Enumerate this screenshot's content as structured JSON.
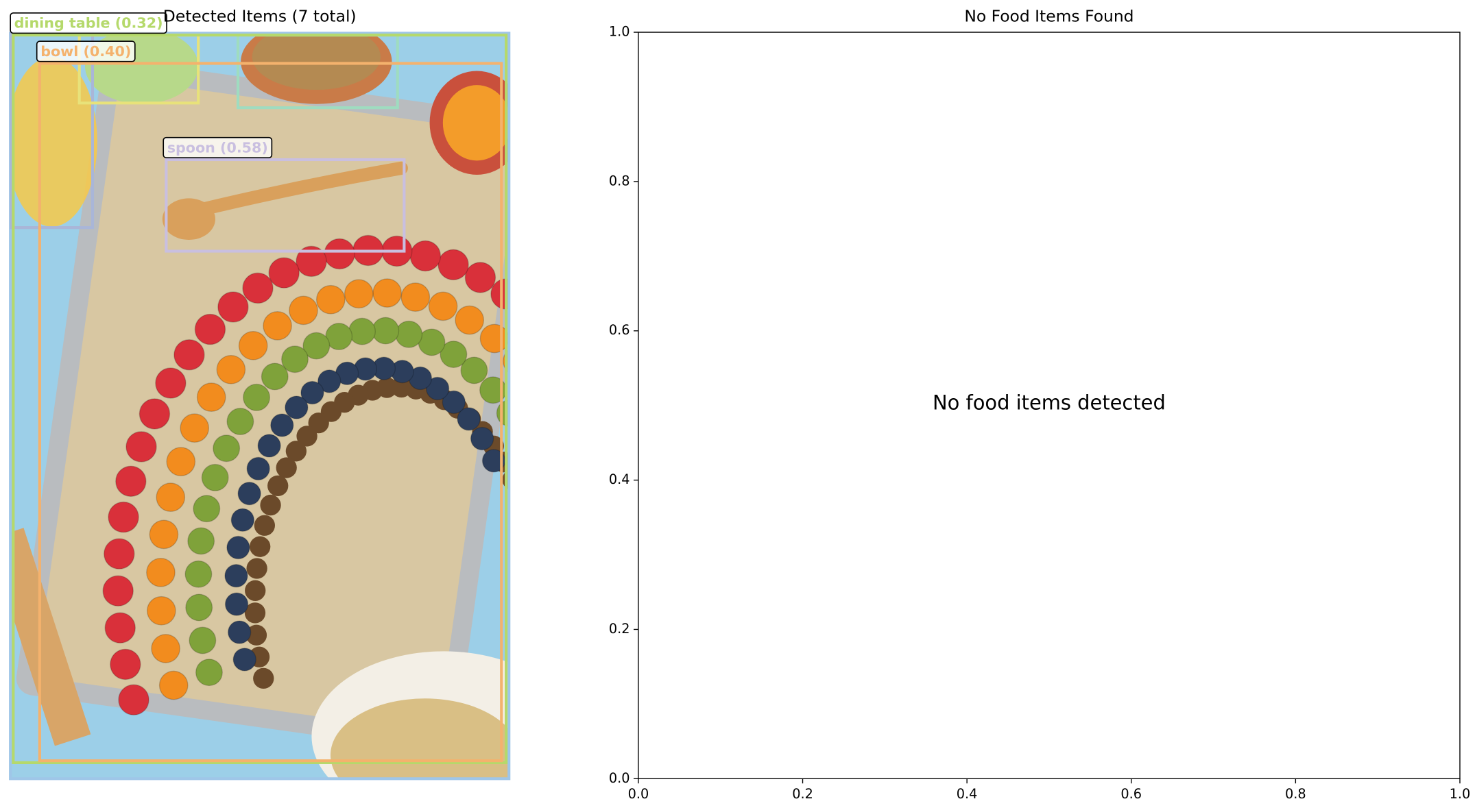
{
  "chart_data": [
    {
      "type": "image",
      "title": "Detected Items (7 total)",
      "labels": [
        "dining table (0.32)",
        "bowl (0.40)",
        "spoon (0.58)"
      ]
    },
    {
      "type": "empty",
      "title": "No Food Items Found",
      "annotation": "No food items detected",
      "xlim": [
        0,
        1
      ],
      "ylim": [
        0,
        1
      ],
      "xticks": [
        {
          "value": 0,
          "label": "0.0"
        },
        {
          "value": 0.2,
          "label": "0.2"
        },
        {
          "value": 0.4,
          "label": "0.4"
        },
        {
          "value": 0.6,
          "label": "0.6"
        },
        {
          "value": 0.8,
          "label": "0.8"
        },
        {
          "value": 1,
          "label": "1.0"
        }
      ],
      "yticks": [
        {
          "value": 0,
          "label": "0.0"
        },
        {
          "value": 0.2,
          "label": "0.2"
        },
        {
          "value": 0.4,
          "label": "0.4"
        },
        {
          "value": 0.6,
          "label": "0.6"
        },
        {
          "value": 0.8,
          "label": "0.8"
        },
        {
          "value": 1,
          "label": "1.0"
        }
      ]
    }
  ]
}
